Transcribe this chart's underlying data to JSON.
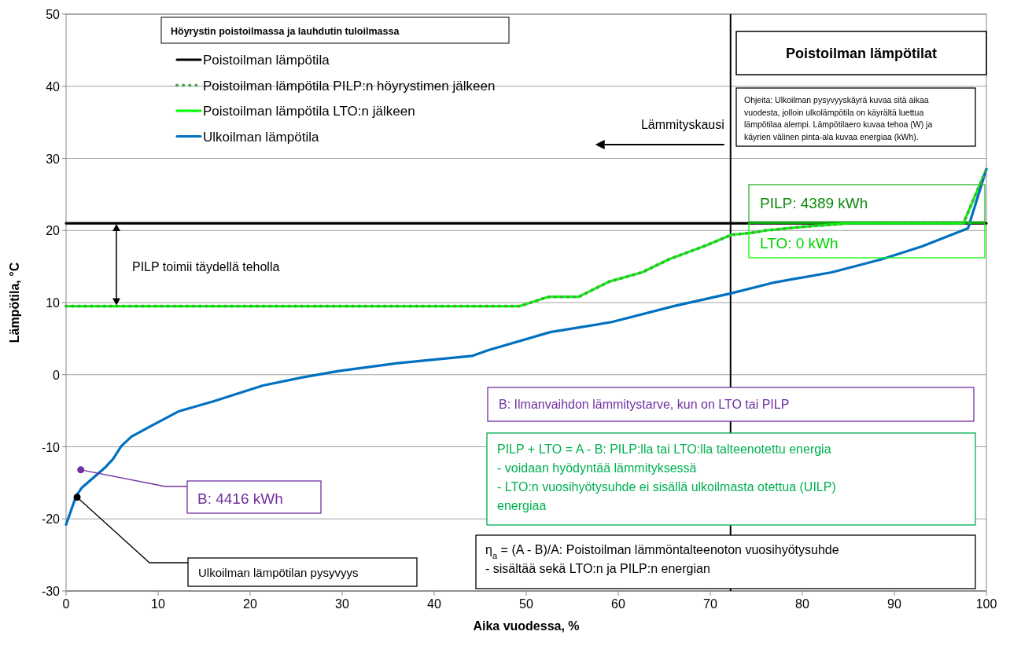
{
  "chart_data": {
    "type": "line",
    "title": "Poistoilman lämpötilat",
    "legend_title": "Höyrystin poistoilmassa ja lauhdutin tuloilmassa",
    "xlabel": "Aika vuodessa, %",
    "ylabel": "Lämpötila, °C",
    "xlim": [
      0,
      100
    ],
    "ylim": [
      -30,
      50
    ],
    "xticks": [
      0,
      10,
      20,
      30,
      40,
      50,
      60,
      70,
      80,
      90,
      100
    ],
    "yticks": [
      -30,
      -20,
      -10,
      0,
      10,
      20,
      30,
      40,
      50
    ],
    "grid": "y",
    "legend": "top left",
    "series": [
      {
        "name": "Poistoilman lämpötila",
        "color": "#000000",
        "line_style": "solid",
        "x": [
          0,
          100
        ],
        "values": [
          21,
          21
        ]
      },
      {
        "name": "Poistoilman lämpötila PILP:n höyrystimen jälkeen",
        "color": "#4ea64e",
        "line_style": "dotted",
        "x": [
          0,
          49.3,
          52.4,
          55.7,
          59,
          62.6,
          65.5,
          69.5,
          72.3,
          74.7,
          76,
          80,
          85,
          90,
          97.5,
          100
        ],
        "values": [
          9.5,
          9.5,
          10.8,
          10.8,
          12.9,
          14.2,
          16,
          17.9,
          19.4,
          19.7,
          20,
          20.5,
          21,
          21,
          21,
          28.5
        ]
      },
      {
        "name": "Poistoilman lämpötila LTO:n jälkeen",
        "color": "#00ff00",
        "line_style": "solid",
        "x": [
          0,
          49.3,
          52.4,
          55.7,
          59,
          62.6,
          65.5,
          69.5,
          72.3,
          74.7,
          76,
          80,
          85,
          90,
          97.5,
          100
        ],
        "values": [
          9.5,
          9.5,
          10.8,
          10.8,
          12.9,
          14.2,
          16,
          17.9,
          19.4,
          19.7,
          20,
          20.5,
          21,
          21,
          21,
          28.5
        ]
      },
      {
        "name": "Ulkoilman lämpötila",
        "color": "#0070c0",
        "line_style": "solid",
        "x": [
          0,
          1.1,
          1.7,
          4.3,
          5.1,
          6,
          7.1,
          9.1,
          12.2,
          16,
          21.4,
          25.6,
          29.6,
          36,
          44.1,
          45.9,
          52.6,
          59.3,
          66,
          72.3,
          77,
          83.2,
          88.6,
          93,
          98,
          100
        ],
        "values": [
          -20.8,
          -16.8,
          -15.7,
          -12.8,
          -11.7,
          -9.9,
          -8.6,
          -7.2,
          -5.1,
          -3.7,
          -1.5,
          -0.4,
          0.5,
          1.6,
          2.6,
          3.4,
          5.9,
          7.3,
          9.5,
          11.3,
          12.8,
          14.2,
          16,
          17.8,
          20.3,
          28.5
        ]
      }
    ],
    "ref_lines": [
      {
        "axis": "x",
        "value": 72.2,
        "label": "Lämmityskausi",
        "color": "#000000"
      }
    ],
    "annotations": [
      "PILP toimii täydellä teholla",
      "Ohjeita: Ulkoilman pysyvyyskäyrä kuvaa sitä aikaa\nvuodesta, jolloin ulkolämpötila on käyrältä luettua\nlämpötilaa alempi. Lämpötilaero kuvaa tehoa (W) ja\nkäyrien välinen pinta-ala kuvaa energiaa (kWh).",
      "PILP: 4389 kWh",
      "LTO: 0 kWh",
      "B: Ilmanvaihdon lämmitystarve, kun on LTO tai PILP",
      "PILP + LTO = A - B: PILP:lla tai LTO:lla talteenotettu energia\n- voidaan hyödyntää lämmityksessä\n- LTO:n vuosihyötysuhde ei sisällä ulkoilmasta otettua (UILP)\nenergiaa",
      "η$_{a}$ = (A - B)/A: Poistoilman lämmöntalteenoton vuosihyötysuhde\n- sisältää sekä LTO:n ja PILP:n energian",
      {
        "text": "B: 4416 kWh",
        "x": 1.6,
        "y": -13.2
      },
      {
        "text": "Ulkoilman lämpötilan pysyvyys",
        "x": 1.2,
        "y": -17
      }
    ]
  }
}
